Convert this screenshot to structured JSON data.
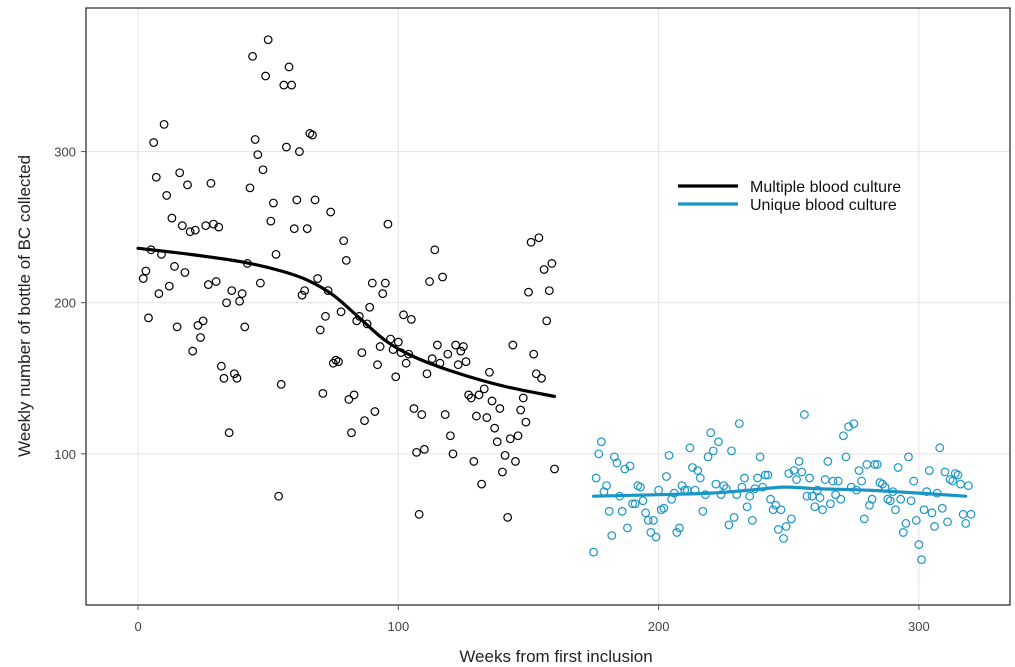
{
  "chart_data": {
    "type": "scatter",
    "title": "",
    "xlabel": "Weeks from first inclusion",
    "ylabel": "Weekly number of bottle of BC collected",
    "xlim": [
      -20,
      335
    ],
    "ylim": [
      0,
      395
    ],
    "x_ticks": [
      0,
      100,
      200,
      300
    ],
    "y_ticks": [
      100,
      200,
      300
    ],
    "grid": true,
    "legend_position": "top-right",
    "series": [
      {
        "name": "Multiple blood culture",
        "color": "#000000",
        "points": [
          [
            2,
            216
          ],
          [
            3,
            221
          ],
          [
            4,
            190
          ],
          [
            5,
            235
          ],
          [
            6,
            306
          ],
          [
            7,
            283
          ],
          [
            8,
            206
          ],
          [
            9,
            232
          ],
          [
            10,
            318
          ],
          [
            11,
            271
          ],
          [
            12,
            211
          ],
          [
            13,
            256
          ],
          [
            14,
            224
          ],
          [
            15,
            184
          ],
          [
            16,
            286
          ],
          [
            17,
            251
          ],
          [
            18,
            220
          ],
          [
            19,
            278
          ],
          [
            20,
            247
          ],
          [
            21,
            168
          ],
          [
            22,
            248
          ],
          [
            23,
            185
          ],
          [
            24,
            177
          ],
          [
            25,
            188
          ],
          [
            26,
            251
          ],
          [
            27,
            212
          ],
          [
            28,
            279
          ],
          [
            29,
            252
          ],
          [
            30,
            214
          ],
          [
            31,
            250
          ],
          [
            32,
            158
          ],
          [
            33,
            150
          ],
          [
            34,
            200
          ],
          [
            35,
            114
          ],
          [
            36,
            208
          ],
          [
            37,
            153
          ],
          [
            38,
            150
          ],
          [
            39,
            201
          ],
          [
            40,
            206
          ],
          [
            41,
            184
          ],
          [
            42,
            226
          ],
          [
            43,
            276
          ],
          [
            44,
            363
          ],
          [
            45,
            308
          ],
          [
            46,
            298
          ],
          [
            47,
            213
          ],
          [
            48,
            288
          ],
          [
            49,
            350
          ],
          [
            50,
            374
          ],
          [
            51,
            254
          ],
          [
            52,
            266
          ],
          [
            53,
            232
          ],
          [
            54,
            72
          ],
          [
            55,
            146
          ],
          [
            56,
            344
          ],
          [
            57,
            303
          ],
          [
            58,
            356
          ],
          [
            59,
            344
          ],
          [
            60,
            249
          ],
          [
            61,
            268
          ],
          [
            62,
            300
          ],
          [
            63,
            205
          ],
          [
            64,
            208
          ],
          [
            65,
            249
          ],
          [
            66,
            312
          ],
          [
            67,
            311
          ],
          [
            68,
            268
          ],
          [
            69,
            216
          ],
          [
            70,
            182
          ],
          [
            71,
            140
          ],
          [
            72,
            191
          ],
          [
            73,
            208
          ],
          [
            74,
            260
          ],
          [
            75,
            160
          ],
          [
            76,
            162
          ],
          [
            77,
            161
          ],
          [
            78,
            194
          ],
          [
            79,
            241
          ],
          [
            80,
            228
          ],
          [
            81,
            136
          ],
          [
            82,
            114
          ],
          [
            83,
            139
          ],
          [
            84,
            188
          ],
          [
            85,
            191
          ],
          [
            86,
            167
          ],
          [
            87,
            122
          ],
          [
            88,
            186
          ],
          [
            89,
            197
          ],
          [
            90,
            213
          ],
          [
            91,
            128
          ],
          [
            92,
            159
          ],
          [
            93,
            171
          ],
          [
            94,
            206
          ],
          [
            95,
            213
          ],
          [
            96,
            252
          ],
          [
            97,
            176
          ],
          [
            98,
            169
          ],
          [
            99,
            151
          ],
          [
            100,
            174
          ],
          [
            101,
            167
          ],
          [
            102,
            192
          ],
          [
            103,
            160
          ],
          [
            104,
            166
          ],
          [
            105,
            189
          ],
          [
            106,
            130
          ],
          [
            107,
            101
          ],
          [
            108,
            60
          ],
          [
            109,
            126
          ],
          [
            110,
            103
          ],
          [
            111,
            153
          ],
          [
            112,
            214
          ],
          [
            113,
            163
          ],
          [
            114,
            235
          ],
          [
            115,
            172
          ],
          [
            116,
            160
          ],
          [
            117,
            217
          ],
          [
            118,
            126
          ],
          [
            119,
            166
          ],
          [
            120,
            112
          ],
          [
            121,
            100
          ],
          [
            122,
            172
          ],
          [
            123,
            159
          ],
          [
            124,
            168
          ],
          [
            125,
            171
          ],
          [
            126,
            161
          ],
          [
            127,
            139
          ],
          [
            128,
            137
          ],
          [
            129,
            95
          ],
          [
            130,
            125
          ],
          [
            131,
            139
          ],
          [
            132,
            80
          ],
          [
            133,
            143
          ],
          [
            134,
            124
          ],
          [
            135,
            154
          ],
          [
            136,
            135
          ],
          [
            137,
            117
          ],
          [
            138,
            108
          ],
          [
            139,
            130
          ],
          [
            140,
            88
          ],
          [
            141,
            99
          ],
          [
            142,
            58
          ],
          [
            143,
            110
          ],
          [
            144,
            172
          ],
          [
            145,
            95
          ],
          [
            146,
            112
          ],
          [
            147,
            129
          ],
          [
            148,
            137
          ],
          [
            149,
            121
          ],
          [
            150,
            207
          ],
          [
            151,
            240
          ],
          [
            152,
            166
          ],
          [
            153,
            153
          ],
          [
            154,
            243
          ],
          [
            155,
            150
          ],
          [
            156,
            222
          ],
          [
            157,
            188
          ],
          [
            158,
            208
          ],
          [
            159,
            226
          ],
          [
            160,
            90
          ]
        ],
        "trend": [
          [
            0,
            236
          ],
          [
            20,
            232
          ],
          [
            40,
            227
          ],
          [
            55,
            221
          ],
          [
            65,
            215
          ],
          [
            75,
            205
          ],
          [
            85,
            190
          ],
          [
            95,
            175
          ],
          [
            105,
            165
          ],
          [
            120,
            155
          ],
          [
            140,
            145
          ],
          [
            160,
            138
          ]
        ]
      },
      {
        "name": "Unique blood culture",
        "color": "#1a96c6",
        "points": [
          [
            175,
            35
          ],
          [
            176,
            84
          ],
          [
            177,
            100
          ],
          [
            178,
            108
          ],
          [
            179,
            75
          ],
          [
            180,
            79
          ],
          [
            181,
            62
          ],
          [
            182,
            46
          ],
          [
            183,
            98
          ],
          [
            184,
            94
          ],
          [
            185,
            72
          ],
          [
            186,
            62
          ],
          [
            187,
            90
          ],
          [
            188,
            51
          ],
          [
            189,
            92
          ],
          [
            190,
            67
          ],
          [
            191,
            67
          ],
          [
            192,
            79
          ],
          [
            193,
            78
          ],
          [
            194,
            69
          ],
          [
            195,
            61
          ],
          [
            196,
            56
          ],
          [
            197,
            48
          ],
          [
            198,
            56
          ],
          [
            199,
            45
          ],
          [
            200,
            76
          ],
          [
            201,
            63
          ],
          [
            202,
            64
          ],
          [
            203,
            85
          ],
          [
            204,
            99
          ],
          [
            205,
            70
          ],
          [
            206,
            74
          ],
          [
            207,
            48
          ],
          [
            208,
            51
          ],
          [
            209,
            79
          ],
          [
            210,
            76
          ],
          [
            211,
            76
          ],
          [
            212,
            104
          ],
          [
            213,
            91
          ],
          [
            214,
            76
          ],
          [
            215,
            89
          ],
          [
            216,
            84
          ],
          [
            217,
            62
          ],
          [
            218,
            73
          ],
          [
            219,
            98
          ],
          [
            220,
            114
          ],
          [
            221,
            102
          ],
          [
            222,
            80
          ],
          [
            223,
            108
          ],
          [
            224,
            73
          ],
          [
            225,
            79
          ],
          [
            226,
            77
          ],
          [
            227,
            53
          ],
          [
            228,
            102
          ],
          [
            229,
            58
          ],
          [
            230,
            73
          ],
          [
            231,
            120
          ],
          [
            232,
            78
          ],
          [
            233,
            84
          ],
          [
            234,
            65
          ],
          [
            235,
            72
          ],
          [
            236,
            56
          ],
          [
            237,
            77
          ],
          [
            238,
            84
          ],
          [
            239,
            98
          ],
          [
            240,
            78
          ],
          [
            241,
            86
          ],
          [
            242,
            86
          ],
          [
            243,
            70
          ],
          [
            244,
            63
          ],
          [
            245,
            66
          ],
          [
            246,
            50
          ],
          [
            247,
            63
          ],
          [
            248,
            44
          ],
          [
            249,
            52
          ],
          [
            250,
            87
          ],
          [
            251,
            57
          ],
          [
            252,
            89
          ],
          [
            253,
            83
          ],
          [
            254,
            95
          ],
          [
            255,
            88
          ],
          [
            256,
            126
          ],
          [
            257,
            72
          ],
          [
            258,
            84
          ],
          [
            259,
            72
          ],
          [
            260,
            65
          ],
          [
            261,
            76
          ],
          [
            262,
            71
          ],
          [
            263,
            63
          ],
          [
            264,
            83
          ],
          [
            265,
            95
          ],
          [
            266,
            67
          ],
          [
            267,
            82
          ],
          [
            268,
            73
          ],
          [
            269,
            82
          ],
          [
            270,
            70
          ],
          [
            271,
            112
          ],
          [
            272,
            98
          ],
          [
            273,
            118
          ],
          [
            274,
            78
          ],
          [
            275,
            120
          ],
          [
            276,
            76
          ],
          [
            277,
            89
          ],
          [
            278,
            82
          ],
          [
            279,
            57
          ],
          [
            280,
            93
          ],
          [
            281,
            66
          ],
          [
            282,
            70
          ],
          [
            283,
            93
          ],
          [
            284,
            93
          ],
          [
            285,
            81
          ],
          [
            286,
            80
          ],
          [
            287,
            78
          ],
          [
            288,
            70
          ],
          [
            289,
            69
          ],
          [
            290,
            75
          ],
          [
            291,
            63
          ],
          [
            292,
            91
          ],
          [
            293,
            70
          ],
          [
            294,
            48
          ],
          [
            295,
            54
          ],
          [
            296,
            98
          ],
          [
            297,
            69
          ],
          [
            298,
            82
          ],
          [
            299,
            56
          ],
          [
            300,
            40
          ],
          [
            301,
            30
          ],
          [
            302,
            63
          ],
          [
            303,
            75
          ],
          [
            304,
            89
          ],
          [
            305,
            61
          ],
          [
            306,
            52
          ],
          [
            307,
            74
          ],
          [
            308,
            104
          ],
          [
            309,
            64
          ],
          [
            310,
            88
          ],
          [
            311,
            55
          ],
          [
            312,
            83
          ],
          [
            313,
            82
          ],
          [
            314,
            87
          ],
          [
            315,
            86
          ],
          [
            316,
            80
          ],
          [
            317,
            60
          ],
          [
            318,
            54
          ],
          [
            319,
            79
          ],
          [
            320,
            60
          ]
        ],
        "trend": [
          [
            175,
            72
          ],
          [
            200,
            73
          ],
          [
            220,
            74
          ],
          [
            235,
            76
          ],
          [
            248,
            78
          ],
          [
            260,
            77
          ],
          [
            280,
            76
          ],
          [
            300,
            74
          ],
          [
            318,
            72
          ]
        ]
      }
    ]
  }
}
